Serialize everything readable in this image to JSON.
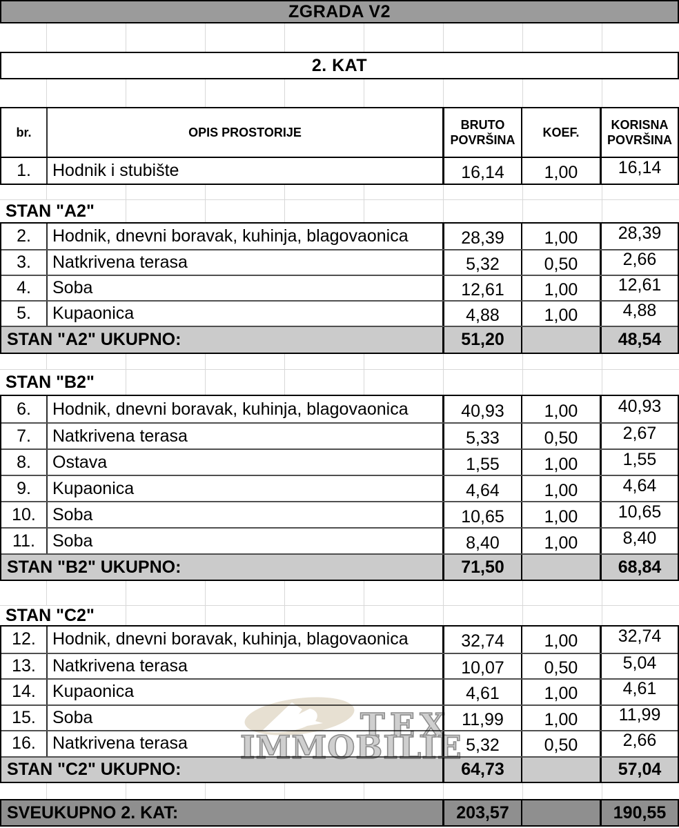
{
  "titles": {
    "building": "ZGRADA V2",
    "floor": "2. KAT"
  },
  "header": {
    "num": "br.",
    "desc": "OPIS PROSTORIJE",
    "bruto": "BRUTO POVRŠINA",
    "koef": "KOEF.",
    "korisna": "KORISNA POVRŠINA"
  },
  "common_row": {
    "num": "1.",
    "desc": "Hodnik i stubište",
    "bruto": "16,14",
    "koef": "1,00",
    "korisna": "16,14"
  },
  "sections": [
    {
      "label": "STAN \"A2\"",
      "rows": [
        {
          "num": "2.",
          "desc": "Hodnik, dnevni boravak, kuhinja, blagovaonica",
          "bruto": "28,39",
          "koef": "1,00",
          "korisna": "28,39"
        },
        {
          "num": "3.",
          "desc": "Natkrivena terasa",
          "bruto": "5,32",
          "koef": "0,50",
          "korisna": "2,66"
        },
        {
          "num": "4.",
          "desc": "Soba",
          "bruto": "12,61",
          "koef": "1,00",
          "korisna": "12,61"
        },
        {
          "num": "5.",
          "desc": "Kupaonica",
          "bruto": "4,88",
          "koef": "1,00",
          "korisna": "4,88"
        }
      ],
      "total": {
        "label": "STAN \"A2\" UKUPNO:",
        "bruto": "51,20",
        "korisna": "48,54"
      }
    },
    {
      "label": "STAN \"B2\"",
      "rows": [
        {
          "num": "6.",
          "desc": "Hodnik, dnevni boravak, kuhinja, blagovaonica",
          "bruto": "40,93",
          "koef": "1,00",
          "korisna": "40,93"
        },
        {
          "num": "7.",
          "desc": "Natkrivena terasa",
          "bruto": "5,33",
          "koef": "0,50",
          "korisna": "2,67"
        },
        {
          "num": "8.",
          "desc": "Ostava",
          "bruto": "1,55",
          "koef": "1,00",
          "korisna": "1,55"
        },
        {
          "num": "9.",
          "desc": "Kupaonica",
          "bruto": "4,64",
          "koef": "1,00",
          "korisna": "4,64"
        },
        {
          "num": "10.",
          "desc": "Soba",
          "bruto": "10,65",
          "koef": "1,00",
          "korisna": "10,65"
        },
        {
          "num": "11.",
          "desc": "Soba",
          "bruto": "8,40",
          "koef": "1,00",
          "korisna": "8,40"
        }
      ],
      "total": {
        "label": "STAN \"B2\" UKUPNO:",
        "bruto": "71,50",
        "korisna": "68,84"
      }
    },
    {
      "label": "STAN \"C2\"",
      "rows": [
        {
          "num": "12.",
          "desc": "Hodnik, dnevni boravak, kuhinja, blagovaonica",
          "bruto": "32,74",
          "koef": "1,00",
          "korisna": "32,74"
        },
        {
          "num": "13.",
          "desc": "Natkrivena terasa",
          "bruto": "10,07",
          "koef": "0,50",
          "korisna": "5,04"
        },
        {
          "num": "14.",
          "desc": "Kupaonica",
          "bruto": "4,61",
          "koef": "1,00",
          "korisna": "4,61"
        },
        {
          "num": "15.",
          "desc": "Soba",
          "bruto": "11,99",
          "koef": "1,00",
          "korisna": "11,99"
        },
        {
          "num": "16.",
          "desc": "Natkrivena terasa",
          "bruto": "5,32",
          "koef": "0,50",
          "korisna": "2,66"
        }
      ],
      "total": {
        "label": "STAN \"C2\" UKUPNO:",
        "bruto": "64,73",
        "korisna": "57,04"
      }
    }
  ],
  "grand_total": {
    "label": "SVEUKUPNO 2. KAT:",
    "bruto": "203,57",
    "korisna": "190,55"
  },
  "watermark": {
    "line1": "TEX",
    "line2": "IMMOBILIE"
  },
  "colors": {
    "title_bar_bg": "#9b9b9b",
    "section_total_bg": "#cbcbcb",
    "grand_total_bg": "#8f8f8f",
    "gridline": "#d8d8d8",
    "watermark_beige": "#e7e0d2",
    "watermark_gray": "#8d8d8d"
  }
}
